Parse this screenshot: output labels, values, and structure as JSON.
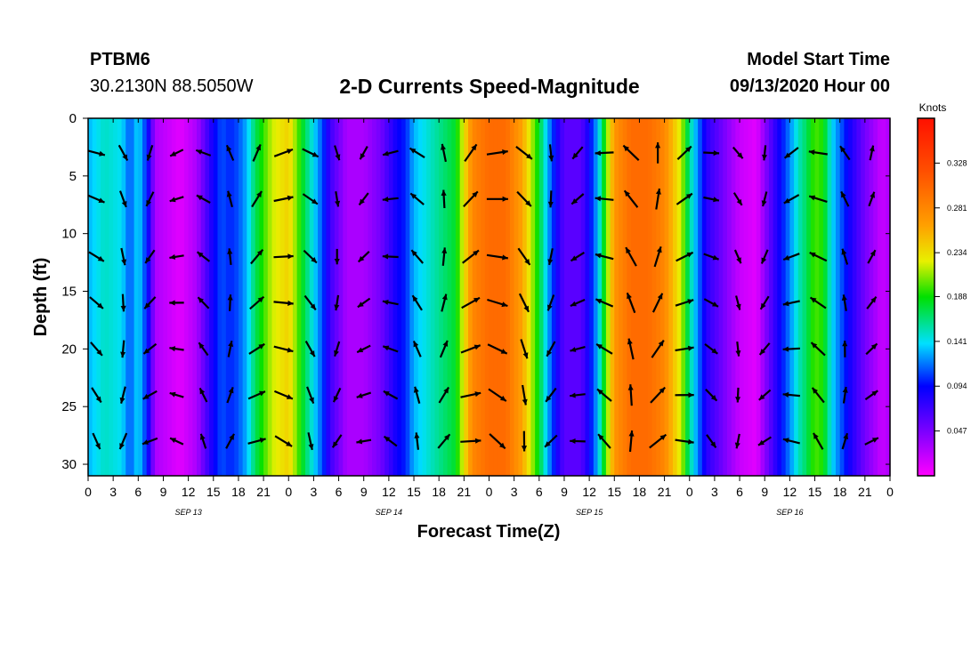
{
  "header": {
    "station": "PTBM6",
    "coordinates": "30.2130N 88.5050W",
    "title": "2-D Currents Speed-Magnitude",
    "model_start_label": "Model Start Time",
    "model_start_value": "09/13/2020 Hour 00"
  },
  "chart_data": {
    "type": "heatmap",
    "title": "2-D Currents Speed-Magnitude",
    "xlabel": "Forecast Time(Z)",
    "ylabel": "Depth (ft)",
    "colorbar_label": "Knots",
    "colorbar_ticks": [
      "0.328",
      "0.281",
      "0.234",
      "0.188",
      "0.141",
      "0.094",
      "0.047"
    ],
    "colorbar_range": [
      0.0,
      0.375
    ],
    "x_ticks": [
      "0",
      "3",
      "6",
      "9",
      "12",
      "15",
      "18",
      "21",
      "0",
      "3",
      "6",
      "9",
      "12",
      "15",
      "18",
      "21",
      "0",
      "3",
      "6",
      "9",
      "12",
      "15",
      "18",
      "21",
      "0",
      "3",
      "6",
      "9",
      "12",
      "15",
      "18",
      "21",
      "0"
    ],
    "x_range_hours": [
      0,
      96
    ],
    "date_labels": [
      {
        "label": "SEP 13",
        "hour": 12
      },
      {
        "label": "SEP 14",
        "hour": 36
      },
      {
        "label": "SEP 15",
        "hour": 60
      },
      {
        "label": "SEP 16",
        "hour": 84
      }
    ],
    "y_ticks": [
      "0",
      "5",
      "10",
      "15",
      "20",
      "25",
      "30"
    ],
    "ylim": [
      0,
      31
    ],
    "y_inverted": true,
    "speed_knots_by_hour": [
      [
        0,
        0.13
      ],
      [
        2,
        0.15
      ],
      [
        4,
        0.14
      ],
      [
        5,
        0.11
      ],
      [
        6,
        0.14
      ],
      [
        7,
        0.1
      ],
      [
        7.5,
        0.07
      ],
      [
        8,
        0.03
      ],
      [
        11,
        0.01
      ],
      [
        13,
        0.03
      ],
      [
        14,
        0.06
      ],
      [
        15,
        0.09
      ],
      [
        16,
        0.11
      ],
      [
        17,
        0.1
      ],
      [
        18,
        0.11
      ],
      [
        19,
        0.13
      ],
      [
        20,
        0.17
      ],
      [
        22,
        0.22
      ],
      [
        24,
        0.24
      ],
      [
        26,
        0.17
      ],
      [
        27,
        0.14
      ],
      [
        28,
        0.11
      ],
      [
        29,
        0.07
      ],
      [
        31,
        0.03
      ],
      [
        33,
        0.03
      ],
      [
        35,
        0.05
      ],
      [
        37,
        0.09
      ],
      [
        38,
        0.1
      ],
      [
        39,
        0.13
      ],
      [
        40,
        0.14
      ],
      [
        42,
        0.16
      ],
      [
        44,
        0.18
      ],
      [
        46,
        0.28
      ],
      [
        48,
        0.3
      ],
      [
        50,
        0.3
      ],
      [
        52,
        0.26
      ],
      [
        54,
        0.18
      ],
      [
        55,
        0.13
      ],
      [
        56,
        0.09
      ],
      [
        57,
        0.06
      ],
      [
        59,
        0.06
      ],
      [
        60,
        0.09
      ],
      [
        61,
        0.13
      ],
      [
        62,
        0.2
      ],
      [
        63,
        0.27
      ],
      [
        65,
        0.3
      ],
      [
        67,
        0.3
      ],
      [
        69,
        0.28
      ],
      [
        71,
        0.22
      ],
      [
        72,
        0.16
      ],
      [
        73,
        0.12
      ],
      [
        74,
        0.08
      ],
      [
        76,
        0.05
      ],
      [
        78,
        0.02
      ],
      [
        80,
        0.01
      ],
      [
        81,
        0.04
      ],
      [
        82,
        0.07
      ],
      [
        84,
        0.12
      ],
      [
        85,
        0.15
      ],
      [
        86,
        0.17
      ],
      [
        87,
        0.2
      ],
      [
        88,
        0.19
      ],
      [
        89,
        0.14
      ],
      [
        91,
        0.09
      ],
      [
        93,
        0.05
      ],
      [
        95,
        0.02
      ],
      [
        96,
        0.03
      ]
    ],
    "grid": false
  }
}
